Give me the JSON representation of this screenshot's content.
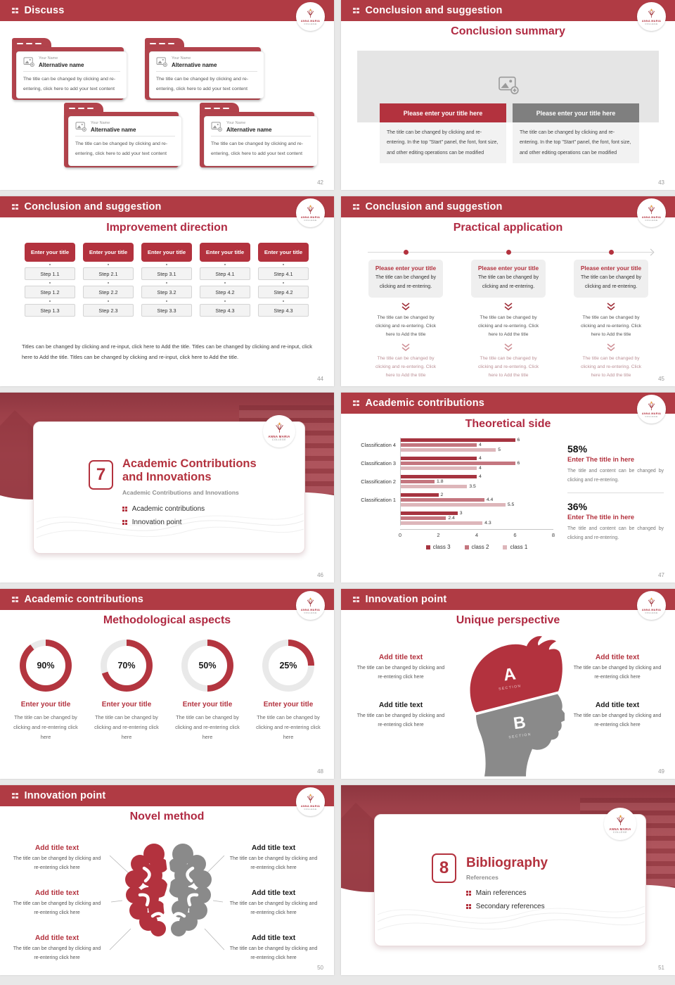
{
  "logo": {
    "name": "ANNA MARIA",
    "sub": "COLLEGE"
  },
  "colors": {
    "header_bar": "#b03b44",
    "accent_red": "#b3323e",
    "title_red": "#b02a42",
    "banner_gray": "#7f7f7f",
    "donut_red": "#b3353f",
    "donut_gray": "#e9e9e9"
  },
  "slides": [
    {
      "header": "Discuss",
      "page": "42",
      "cards": [
        {
          "name_label": "Your Name",
          "alt_name": "Alternative name",
          "body": "The title can be changed by clicking and re-entering, click here to add your text content"
        },
        {
          "name_label": "Your Name",
          "alt_name": "Alternative name",
          "body": "The title can be changed by clicking and re-entering, click here to add your text content"
        },
        {
          "name_label": "Your Name",
          "alt_name": "Alternative name",
          "body": "The title can be changed by clicking and re-entering, click here to add your text content"
        },
        {
          "name_label": "Your Name",
          "alt_name": "Alternative name",
          "body": "The title can be changed by clicking and re-entering, click here to add your text content"
        }
      ]
    },
    {
      "header": "Conclusion and suggestion",
      "title": "Conclusion summary",
      "page": "43",
      "panels": [
        {
          "banner": "Please enter your title here",
          "body": "The title can be changed by clicking and re-entering. In the top \"Start\" panel, the font, font size, and other editing operations can be modified"
        },
        {
          "banner": "Please enter your title here",
          "body": "The title can be changed by clicking and re-entering. In the top \"Start\" panel, the font, font size, and other editing operations can be modified"
        }
      ]
    },
    {
      "header": "Conclusion and suggestion",
      "title": "Improvement direction",
      "page": "44",
      "columns": [
        {
          "title": "Enter your title",
          "steps": [
            "Step 1.1",
            "Step 1.2",
            "Step 1.3"
          ]
        },
        {
          "title": "Enter your title",
          "steps": [
            "Step 2.1",
            "Step 2.2",
            "Step 2.3"
          ]
        },
        {
          "title": "Enter your title",
          "steps": [
            "Step 3.1",
            "Step 3.2",
            "Step 3.3"
          ]
        },
        {
          "title": "Enter your title",
          "steps": [
            "Step 4.1",
            "Step 4.2",
            "Step 4.3"
          ]
        },
        {
          "title": "Enter your title",
          "steps": [
            "Step 4.1",
            "Step 4.2",
            "Step 4.3"
          ]
        }
      ],
      "footer": "Titles can be changed by clicking and re-input, click here to Add the title. Titles can be changed by clicking and re-input, click here to Add the title. Titles can be changed by clicking and re-input, click here to Add the title."
    },
    {
      "header": "Conclusion and suggestion",
      "title": "Practical application",
      "page": "45",
      "items": [
        {
          "title": "Please enter your title",
          "body": "The title can be changed by clicking and re-entering.",
          "level2": "The title can be changed by clicking and re-entering. Click here to Add the title",
          "level3": "The title can be changed by clicking and re-entering. Click here to Add the title"
        },
        {
          "title": "Please enter your title",
          "body": "The title can be changed by clicking and re-entering.",
          "level2": "The title can be changed by clicking and re-entering. Click here to Add the title",
          "level3": "The title can be changed by clicking and re-entering. Click here to Add the title"
        },
        {
          "title": "Please enter your title",
          "body": "The title can be changed by clicking and re-entering.",
          "level2": "The title can be changed by clicking and re-entering. Click here to Add the title",
          "level3": "The title can be changed by clicking and re-entering. Click here to Add the title"
        }
      ]
    },
    {
      "page": "46",
      "number": "7",
      "title_line1": "Academic Contributions",
      "title_line2": "and Innovations",
      "subtitle": "Academic Contributions and Innovations",
      "bullets": [
        "Academic contributions",
        "Innovation point"
      ]
    },
    {
      "header": "Academic contributions",
      "title": "Theoretical side",
      "page": "47",
      "chart_data": {
        "type": "bar",
        "orientation": "horizontal",
        "title": "Theoretical side",
        "categories": [
          "Classification 4",
          "Classification 3",
          "Classification 2",
          "Classification 1",
          ""
        ],
        "series": [
          {
            "name": "class 3",
            "color": "#a63440",
            "values": [
              6,
              4,
              4,
              2,
              3
            ]
          },
          {
            "name": "class 2",
            "color": "#c4767f",
            "values": [
              4,
              6,
              1.8,
              4.4,
              2.4
            ]
          },
          {
            "name": "class 1",
            "color": "#ddb6ba",
            "values": [
              5,
              4,
              3.5,
              5.5,
              4.3
            ]
          }
        ],
        "xlim": [
          0,
          8
        ],
        "xticks": [
          0,
          2,
          4,
          6,
          8
        ],
        "legend_position": "bottom",
        "grid": false
      },
      "stats": [
        {
          "percent": "58%",
          "title": "Enter The title in here",
          "body": "The title and content can be changed by clicking and re-entering."
        },
        {
          "percent": "36%",
          "title": "Enter The title in here",
          "body": "The title and content can be changed by clicking and re-entering."
        }
      ]
    },
    {
      "header": "Academic contributions",
      "title": "Methodological aspects",
      "page": "48",
      "chart_data": {
        "type": "pie",
        "subtype": "donut-set",
        "values": [
          90,
          70,
          50,
          25
        ],
        "labels": [
          "90%",
          "70%",
          "50%",
          "25%"
        ]
      },
      "donuts": [
        {
          "percent": 90,
          "label": "90%",
          "title": "Enter your title",
          "body": "The title can be changed by clicking and re-entering click here"
        },
        {
          "percent": 70,
          "label": "70%",
          "title": "Enter your title",
          "body": "The title can be changed by clicking and re-entering click here"
        },
        {
          "percent": 50,
          "label": "50%",
          "title": "Enter your title",
          "body": "The title can be changed by clicking and re-entering click here"
        },
        {
          "percent": 25,
          "label": "25%",
          "title": "Enter your title",
          "body": "The title can be changed by clicking and re-entering click here"
        }
      ]
    },
    {
      "header": "Innovation point",
      "title": "Unique perspective",
      "page": "49",
      "head": {
        "a": "A",
        "a_sub": "SECTION",
        "b": "B",
        "b_sub": "SECTION"
      },
      "left": [
        {
          "title": "Add title text",
          "body": "The title can be changed by clicking and re-entering click here"
        },
        {
          "title": "Add title text",
          "body": "The title can be changed by clicking and re-entering click here"
        }
      ],
      "right": [
        {
          "title": "Add title text",
          "body": "The title can be changed by clicking and re-entering click here"
        },
        {
          "title": "Add title text",
          "body": "The title can be changed by clicking and re-entering click here"
        }
      ]
    },
    {
      "header": "Innovation point",
      "title": "Novel method",
      "page": "50",
      "left": [
        {
          "title": "Add title text",
          "body": "The title can be changed by clicking and re-entering click here"
        },
        {
          "title": "Add title text",
          "body": "The title can be changed by clicking and re-entering click here"
        },
        {
          "title": "Add title text",
          "body": "The title can be changed by clicking and re-entering click here"
        }
      ],
      "right": [
        {
          "title": "Add title text",
          "body": "The title can be changed by clicking and re-entering click here"
        },
        {
          "title": "Add title text",
          "body": "The title can be changed by clicking and re-entering click here"
        },
        {
          "title": "Add title text",
          "body": "The title can be changed by clicking and re-entering click here"
        }
      ]
    },
    {
      "page": "51",
      "number": "8",
      "title_line1": "Bibliography",
      "title_line2": "",
      "subtitle": "References",
      "bullets": [
        "Main references",
        "Secondary references"
      ]
    }
  ]
}
